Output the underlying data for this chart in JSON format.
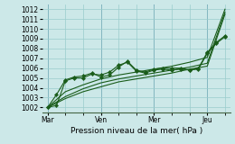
{
  "xlabel": "Pression niveau de la mer( hPa )",
  "background_color": "#cce8e8",
  "grid_color": "#99cccc",
  "line_color": "#1a5c1a",
  "ylim": [
    1001.5,
    1012.5
  ],
  "yticks": [
    1002,
    1003,
    1004,
    1005,
    1006,
    1007,
    1008,
    1009,
    1010,
    1011,
    1012
  ],
  "xtick_labels": [
    "Mar",
    "Ven",
    "Mer",
    "Jeu"
  ],
  "xtick_positions": [
    0,
    3,
    6,
    9
  ],
  "xlim": [
    -0.3,
    10.3
  ],
  "jagged1_x": [
    0,
    0.5,
    1,
    1.5,
    2,
    2.5,
    3,
    3.5,
    4,
    4.5,
    5,
    5.5,
    6,
    6.5,
    7,
    7.5,
    8,
    8.5,
    9,
    9.5,
    10
  ],
  "jagged1_y": [
    1002.0,
    1003.3,
    1004.8,
    1005.1,
    1005.2,
    1005.5,
    1005.1,
    1005.3,
    1006.1,
    1006.7,
    1005.8,
    1005.6,
    1005.9,
    1006.0,
    1006.0,
    1006.0,
    1005.8,
    1006.0,
    1007.6,
    1008.6,
    1009.3
  ],
  "jagged2_x": [
    0,
    0.5,
    1,
    1.5,
    2,
    2.5,
    3,
    3.5,
    4,
    4.5,
    5,
    5.5,
    6,
    6.5,
    7,
    7.5,
    8,
    8.5,
    9,
    9.5,
    10
  ],
  "jagged2_y": [
    1002.0,
    1002.2,
    1004.7,
    1005.0,
    1005.0,
    1005.4,
    1005.3,
    1005.6,
    1006.3,
    1006.6,
    1005.7,
    1005.5,
    1005.8,
    1005.9,
    1005.8,
    1005.9,
    1005.8,
    1005.9,
    1007.5,
    1008.5,
    1009.2
  ],
  "smooth1_x": [
    0,
    1,
    2,
    3,
    4,
    5,
    6,
    7,
    8,
    9,
    10
  ],
  "smooth1_y": [
    1002.0,
    1003.6,
    1004.3,
    1004.9,
    1005.3,
    1005.6,
    1005.9,
    1006.2,
    1006.6,
    1007.1,
    1012.0
  ],
  "smooth2_x": [
    0,
    1,
    2,
    3,
    4,
    5,
    6,
    7,
    8,
    9,
    10
  ],
  "smooth2_y": [
    1002.0,
    1003.1,
    1003.9,
    1004.5,
    1004.9,
    1005.2,
    1005.5,
    1005.8,
    1006.1,
    1006.5,
    1011.7
  ],
  "smooth3_x": [
    0,
    1,
    2,
    3,
    4,
    5,
    6,
    7,
    8,
    9,
    10
  ],
  "smooth3_y": [
    1002.0,
    1002.9,
    1003.6,
    1004.1,
    1004.6,
    1004.9,
    1005.2,
    1005.5,
    1005.9,
    1006.2,
    1011.5
  ]
}
